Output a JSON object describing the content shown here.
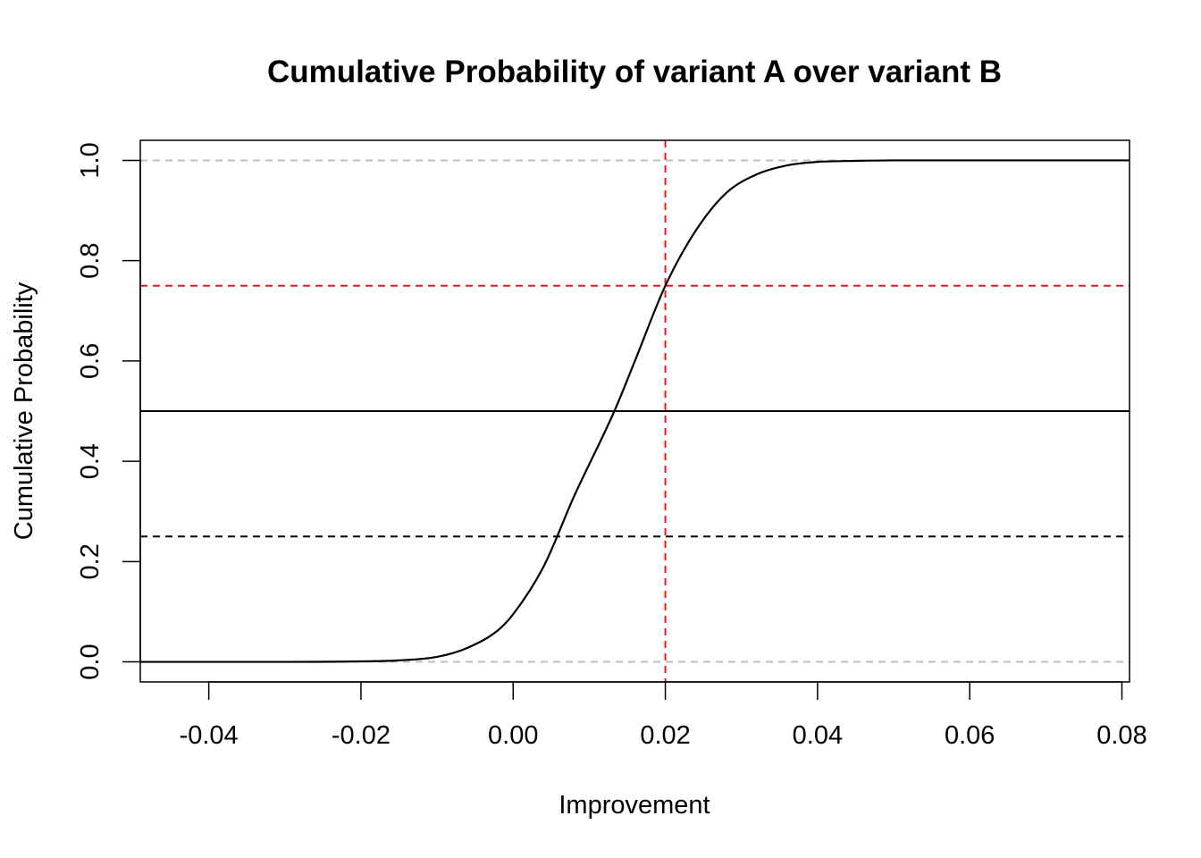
{
  "chart_data": {
    "type": "line",
    "title": "Cumulative Probability of variant A over variant B",
    "xlabel": "Improvement",
    "ylabel": "Cumulative Probability",
    "xlim": [
      -0.049,
      0.081
    ],
    "ylim": [
      -0.04,
      1.04
    ],
    "x_ticks": [
      -0.04,
      -0.02,
      0.0,
      0.02,
      0.04,
      0.06,
      0.08
    ],
    "x_tick_labels": [
      "-0.04",
      "-0.02",
      "0.00",
      "0.02",
      "0.04",
      "0.06",
      "0.08"
    ],
    "y_ticks": [
      0.0,
      0.2,
      0.4,
      0.6,
      0.8,
      1.0
    ],
    "y_tick_labels": [
      "0.0",
      "0.2",
      "0.4",
      "0.6",
      "0.8",
      "1.0"
    ],
    "grid": false,
    "series": [
      {
        "color": "#000000",
        "x": [
          -0.049,
          -0.03,
          -0.02,
          -0.015,
          -0.01,
          -0.006,
          -0.002,
          0.0,
          0.004,
          0.008,
          0.0133,
          0.016,
          0.02,
          0.024,
          0.028,
          0.032,
          0.036,
          0.04,
          0.045,
          0.05,
          0.081
        ],
        "y": [
          0.0,
          0.0,
          0.001,
          0.003,
          0.01,
          0.028,
          0.063,
          0.095,
          0.19,
          0.33,
          0.5,
          0.6,
          0.75,
          0.86,
          0.935,
          0.972,
          0.99,
          0.997,
          0.999,
          1.0,
          1.0
        ]
      }
    ],
    "reference_lines": [
      {
        "orientation": "horizontal",
        "value": 1.0,
        "color": "#bebebe",
        "style": "dashed"
      },
      {
        "orientation": "horizontal",
        "value": 0.0,
        "color": "#bebebe",
        "style": "dashed"
      },
      {
        "orientation": "horizontal",
        "value": 0.75,
        "color": "#e41a1c",
        "style": "dashed"
      },
      {
        "orientation": "horizontal",
        "value": 0.5,
        "color": "#000000",
        "style": "solid"
      },
      {
        "orientation": "horizontal",
        "value": 0.25,
        "color": "#000000",
        "style": "dashed"
      },
      {
        "orientation": "vertical",
        "value": 0.02,
        "color": "#e41a1c",
        "style": "dashed"
      }
    ]
  }
}
